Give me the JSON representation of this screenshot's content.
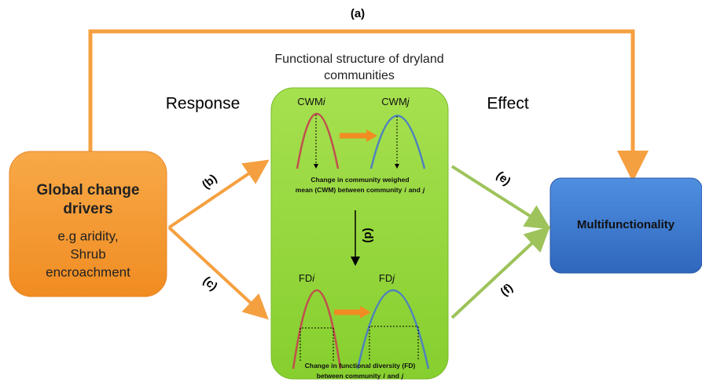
{
  "label_a": "(a)",
  "center_title": [
    "Functional structure of dryland",
    "communities"
  ],
  "response": "Response",
  "effect": "Effect",
  "drivers": {
    "title": [
      "Global change",
      "drivers"
    ],
    "examples": [
      "e.g aridity,",
      "Shrub",
      "encroachment"
    ]
  },
  "path_labels": {
    "b": "(b)",
    "c": "(c)",
    "d": "(d)",
    "e": "(e)",
    "f": "(f)"
  },
  "cwm": {
    "left": [
      "CWM",
      "i"
    ],
    "right": [
      "CWM",
      "j"
    ],
    "caption": [
      [
        "Change in community weighed"
      ],
      [
        "mean (CWM) between community",
        "i",
        "and",
        "j"
      ]
    ]
  },
  "fd": {
    "left": [
      "FD",
      "i"
    ],
    "right": [
      "FD",
      "j"
    ],
    "caption": [
      [
        "Change in functional diversity (FD)"
      ],
      [
        "between community",
        "i",
        "and",
        "j"
      ]
    ]
  },
  "outcome": "Multifunctionality"
}
